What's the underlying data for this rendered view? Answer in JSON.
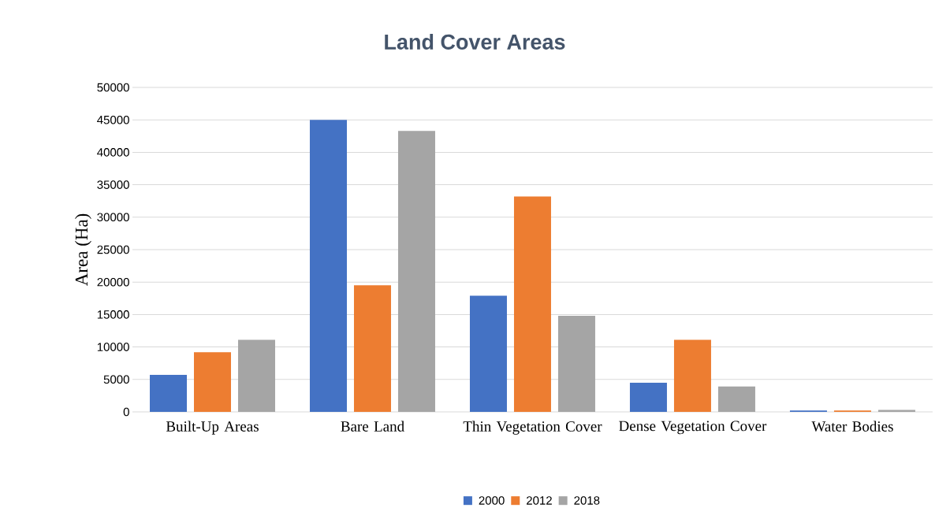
{
  "chart_data": {
    "type": "bar",
    "title": "Land Cover Areas",
    "ylabel": "Area (Ha)",
    "categories": [
      "Built-Up Areas",
      "Bare Land",
      "Thin Vegetation Cover",
      "Dense Vegetation Cover",
      "Water Bodies"
    ],
    "series": [
      {
        "name": "2000",
        "color": "#4472c4",
        "values": [
          5700,
          45000,
          17900,
          4500,
          200
        ]
      },
      {
        "name": "2012",
        "color": "#ed7d31",
        "values": [
          9200,
          19500,
          33200,
          11100,
          200
        ]
      },
      {
        "name": "2018",
        "color": "#a5a5a5",
        "values": [
          11100,
          43300,
          14800,
          3900,
          300
        ]
      }
    ],
    "ylim": [
      0,
      50000
    ],
    "yticks": [
      0,
      5000,
      10000,
      15000,
      20000,
      25000,
      30000,
      35000,
      40000,
      45000,
      50000
    ],
    "grid": "y",
    "legend": "bottom"
  }
}
